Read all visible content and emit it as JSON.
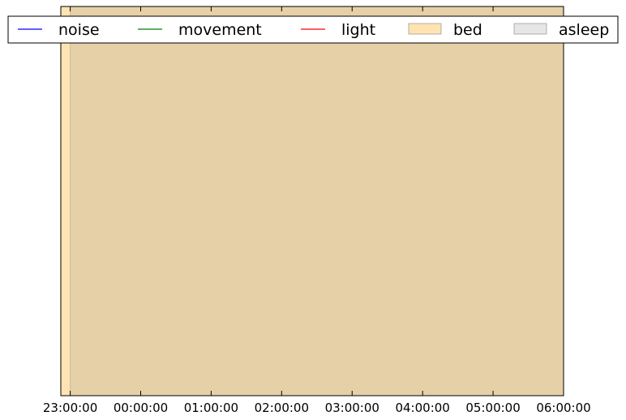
{
  "chart_data": {
    "type": "area",
    "title": "",
    "xlabel": "",
    "ylabel": "",
    "x_ticks": [
      "23:00:00",
      "00:00:00",
      "01:00:00",
      "02:00:00",
      "03:00:00",
      "04:00:00",
      "05:00:00",
      "06:00:00"
    ],
    "xlim": [
      "22:52:00",
      "06:00:00"
    ],
    "y_ticks": [],
    "grid": false,
    "legend": {
      "placement": "top",
      "columns": 5,
      "entries": [
        {
          "label": "noise",
          "kind": "line",
          "color": "#0000ff"
        },
        {
          "label": "movement",
          "kind": "line",
          "color": "#008000"
        },
        {
          "label": "light",
          "kind": "line",
          "color": "#ff0000"
        },
        {
          "label": "bed",
          "kind": "patch",
          "color": "#ffa500",
          "alpha": 0.3
        },
        {
          "label": "asleep",
          "kind": "patch",
          "color": "#808080",
          "alpha": 0.2
        }
      ]
    },
    "series": [
      {
        "name": "bed",
        "kind": "span",
        "start": "22:52:00",
        "end": "06:00:00",
        "color": "#ffa500",
        "alpha": 0.3
      },
      {
        "name": "asleep",
        "kind": "span",
        "start": "23:00:00",
        "end": "06:00:00",
        "color": "#808080",
        "alpha": 0.2
      },
      {
        "name": "noise",
        "kind": "line",
        "values": [],
        "color": "#0000ff"
      },
      {
        "name": "movement",
        "kind": "line",
        "values": [],
        "color": "#008000"
      },
      {
        "name": "light",
        "kind": "line",
        "values": [],
        "color": "#ff0000"
      }
    ]
  }
}
